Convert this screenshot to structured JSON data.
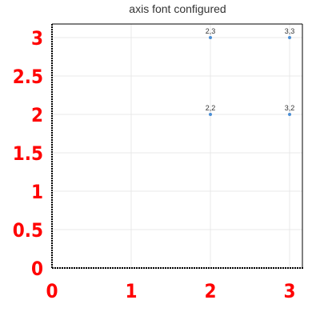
{
  "chart_data": {
    "type": "scatter",
    "title": "axis font configured",
    "xlim": [
      0,
      3
    ],
    "ylim": [
      0,
      3
    ],
    "x_ticks": [
      "0",
      "1",
      "2",
      "3"
    ],
    "y_ticks": [
      "0",
      "0.5",
      "1",
      "1.5",
      "2",
      "2.5",
      "3"
    ],
    "grid": true,
    "series": [
      {
        "points": [
          {
            "x": 2,
            "y": 3,
            "label": "2,3"
          },
          {
            "x": 3,
            "y": 3,
            "label": "3,3"
          },
          {
            "x": 2,
            "y": 2,
            "label": "2,2"
          },
          {
            "x": 3,
            "y": 2,
            "label": "3,2"
          }
        ]
      }
    ],
    "colors": {
      "point": "#4c8fd6",
      "tick_label": "#ff0000",
      "grid": "#e8e8e8",
      "axis": "#000000"
    }
  }
}
